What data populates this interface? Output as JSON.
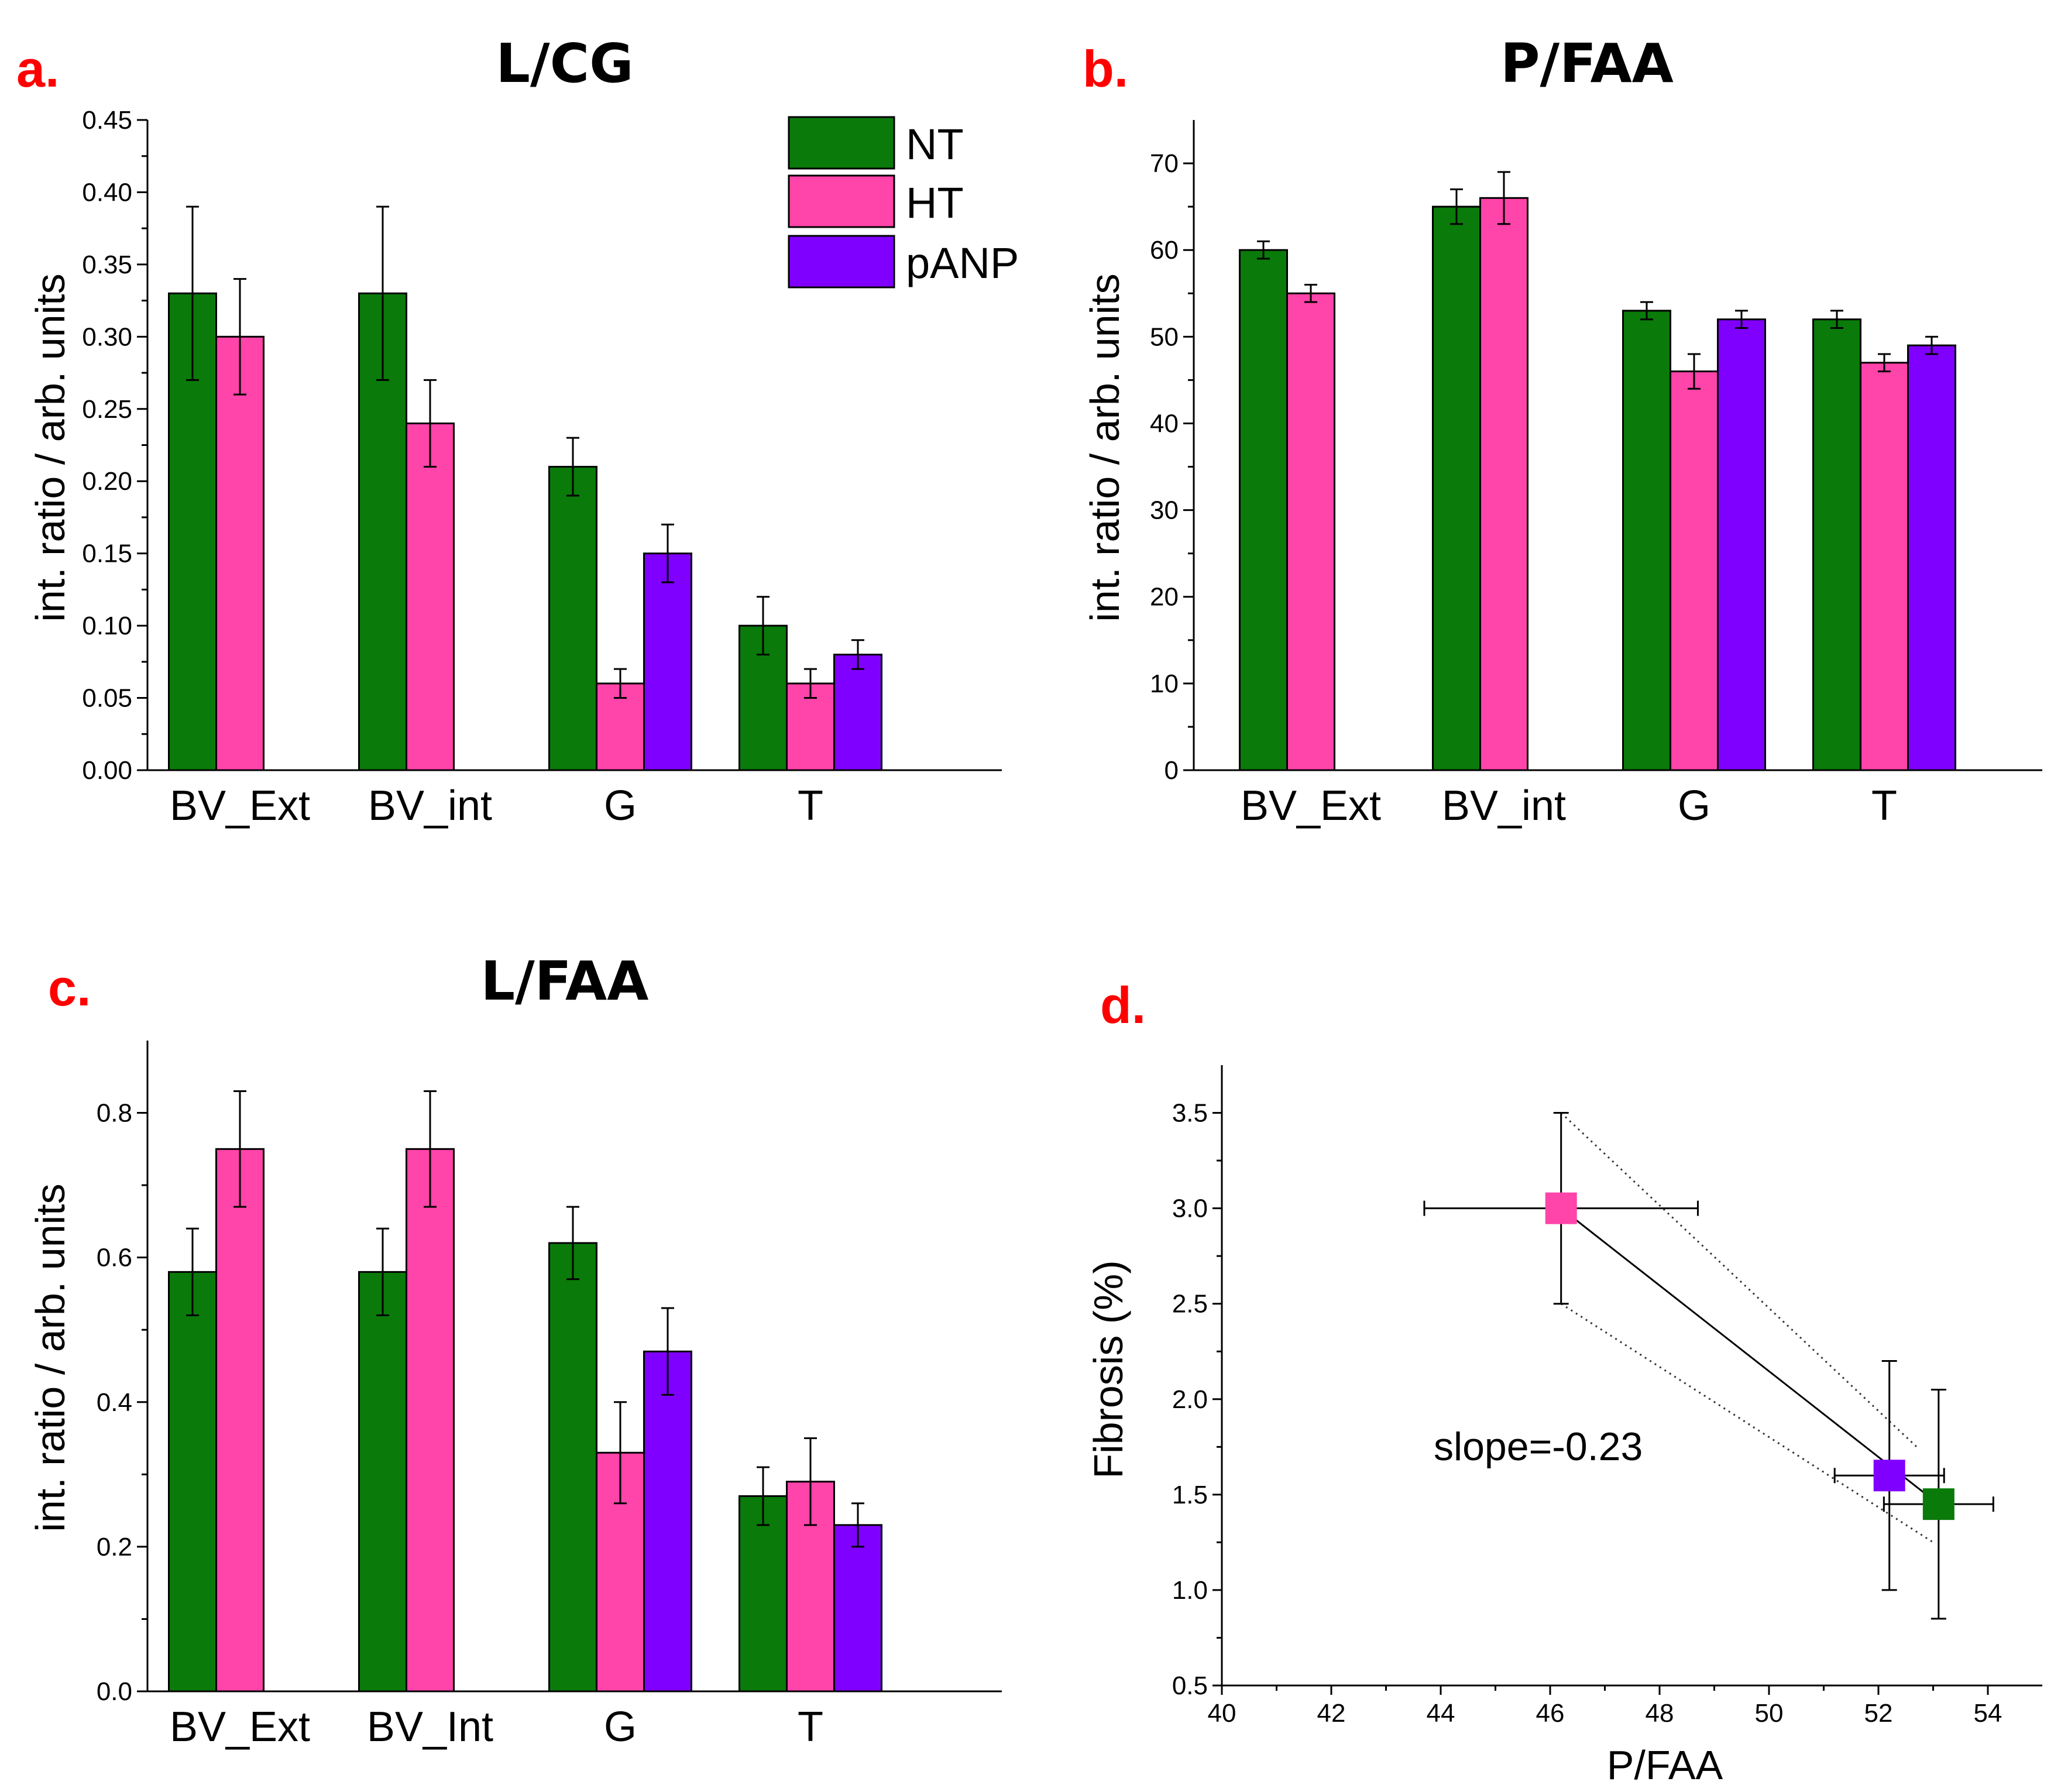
{
  "colors": {
    "NT": "#0a7a0a",
    "HT": "#ff44aa",
    "pANP": "#8000ff",
    "letter": "#ff0000"
  },
  "legend": [
    {
      "label": "NT",
      "color": "#0a7a0a"
    },
    {
      "label": "HT",
      "color": "#ff44aa"
    },
    {
      "label": "pANP",
      "color": "#8000ff"
    }
  ],
  "chart_data": [
    {
      "panel": "a.",
      "type": "bar",
      "title": "L/CG",
      "ylabel": "int. ratio  /  arb. units",
      "ylim": [
        0,
        0.45
      ],
      "yticks": [
        "0.00",
        "0.05",
        "0.10",
        "0.15",
        "0.20",
        "0.25",
        "0.30",
        "0.35",
        "0.40",
        "0.45"
      ],
      "categories": [
        "BV_Ext",
        "BV_int",
        "G",
        "T"
      ],
      "series": [
        {
          "name": "NT",
          "values": [
            0.33,
            0.33,
            0.21,
            0.1
          ],
          "errors": [
            0.06,
            0.06,
            0.02,
            0.02
          ]
        },
        {
          "name": "HT",
          "values": [
            0.3,
            0.24,
            0.06,
            0.06
          ],
          "errors": [
            0.04,
            0.03,
            0.01,
            0.01
          ]
        },
        {
          "name": "pANP",
          "values": [
            null,
            null,
            0.15,
            0.08
          ],
          "errors": [
            null,
            null,
            0.02,
            0.01
          ]
        }
      ],
      "legend_position": "top-right"
    },
    {
      "panel": "b.",
      "type": "bar",
      "title": "P/FAA",
      "ylabel": "int. ratio  /  arb. units",
      "ylim": [
        0,
        75
      ],
      "yticks": [
        "0",
        "10",
        "20",
        "30",
        "40",
        "50",
        "60",
        "70"
      ],
      "categories": [
        "BV_Ext",
        "BV_int",
        "G",
        "T"
      ],
      "series": [
        {
          "name": "NT",
          "values": [
            60,
            65,
            53,
            52
          ],
          "errors": [
            1,
            2,
            1,
            1
          ]
        },
        {
          "name": "HT",
          "values": [
            55,
            66,
            46,
            47
          ],
          "errors": [
            1,
            3,
            2,
            1
          ]
        },
        {
          "name": "pANP",
          "values": [
            null,
            null,
            52,
            49
          ],
          "errors": [
            null,
            null,
            1,
            1
          ]
        }
      ]
    },
    {
      "panel": "c.",
      "type": "bar",
      "title": "L/FAA",
      "ylabel": "int. ratio  /  arb. units",
      "ylim": [
        0,
        0.9
      ],
      "yticks": [
        "0.0",
        "0.2",
        "0.4",
        "0.6",
        "0.8"
      ],
      "categories": [
        "BV_Ext",
        "BV_Int",
        "G",
        "T"
      ],
      "series": [
        {
          "name": "NT",
          "values": [
            0.58,
            0.58,
            0.62,
            0.27
          ],
          "errors": [
            0.06,
            0.06,
            0.05,
            0.04
          ]
        },
        {
          "name": "HT",
          "values": [
            0.75,
            0.75,
            0.33,
            0.29
          ],
          "errors": [
            0.08,
            0.08,
            0.07,
            0.06
          ]
        },
        {
          "name": "pANP",
          "values": [
            null,
            null,
            0.47,
            0.23
          ],
          "errors": [
            null,
            null,
            0.06,
            0.03
          ]
        }
      ]
    },
    {
      "panel": "d.",
      "type": "scatter",
      "title": "",
      "xlabel": "P/FAA",
      "ylabel": "Fibrosis (%)",
      "xlim": [
        40,
        55
      ],
      "ylim": [
        0.5,
        3.75
      ],
      "xticks": [
        "40",
        "42",
        "44",
        "46",
        "48",
        "50",
        "52",
        "54"
      ],
      "yticks": [
        "0.5",
        "1.0",
        "1.5",
        "2.0",
        "2.5",
        "3.0",
        "3.5"
      ],
      "points": [
        {
          "name": "HT",
          "x": 46.2,
          "y": 3.0,
          "xerr": 2.5,
          "yerr": 0.5
        },
        {
          "name": "pANP",
          "x": 52.2,
          "y": 1.6,
          "xerr": 1.0,
          "yerr": 0.6
        },
        {
          "name": "NT",
          "x": 53.1,
          "y": 1.45,
          "xerr": 1.0,
          "yerr": 0.6
        }
      ],
      "fit": {
        "x": [
          46.2,
          53.1
        ],
        "y": [
          3.0,
          1.45
        ]
      },
      "annotation": "slope=-0.23"
    }
  ]
}
